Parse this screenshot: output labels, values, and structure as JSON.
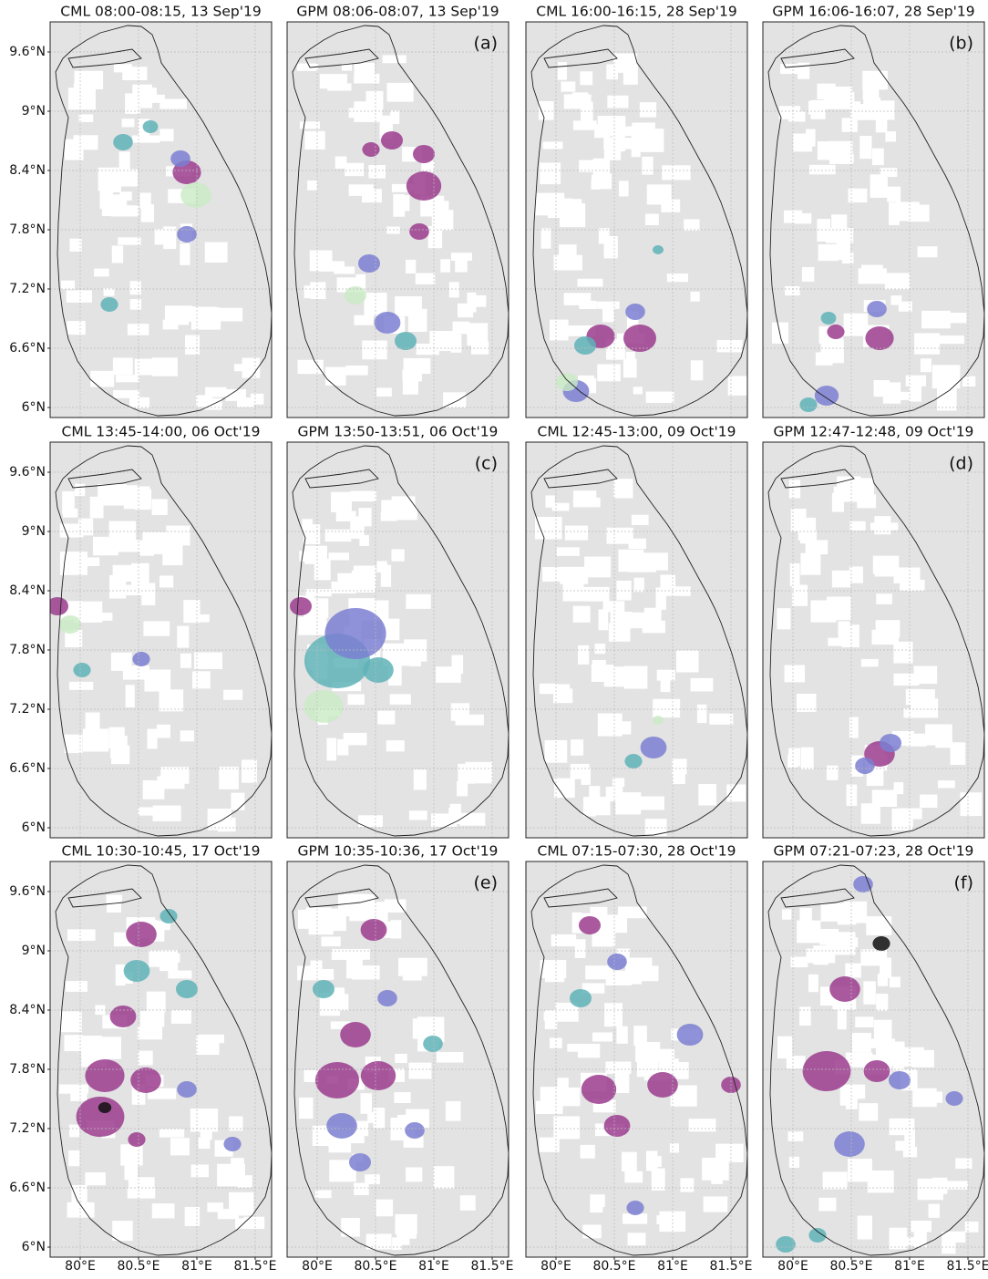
{
  "panels": [
    {
      "title": "CML 08:00-08:15, 13 Sep'19"
    },
    {
      "title": "GPM 08:06-08:07, 13 Sep'19",
      "label": "(a)"
    },
    {
      "title": "CML 16:00-16:15, 28 Sep'19"
    },
    {
      "title": "GPM 16:06-16:07, 28 Sep'19",
      "label": "(b)"
    },
    {
      "title": "CML 13:45-14:00, 06 Oct'19"
    },
    {
      "title": "GPM 13:50-13:51, 06 Oct'19",
      "label": "(c)"
    },
    {
      "title": "CML 12:45-13:00, 09 Oct'19"
    },
    {
      "title": "GPM 12:47-12:48, 09 Oct'19",
      "label": "(d)"
    },
    {
      "title": "CML 10:30-10:45, 17 Oct'19"
    },
    {
      "title": "GPM 10:35-10:36, 17 Oct'19",
      "label": "(e)"
    },
    {
      "title": "CML 07:15-07:30, 28 Oct'19"
    },
    {
      "title": "GPM 07:21-07:23, 28 Oct'19",
      "label": "(f)"
    }
  ],
  "y_axis_labels": [
    "9.6°N",
    "9°N",
    "8.4°N",
    "7.8°N",
    "7.2°N",
    "6.6°N",
    "6°N"
  ],
  "x_axis_labels": [
    "80°E",
    "80.5°E",
    "81°E",
    "81.5°E"
  ]
}
